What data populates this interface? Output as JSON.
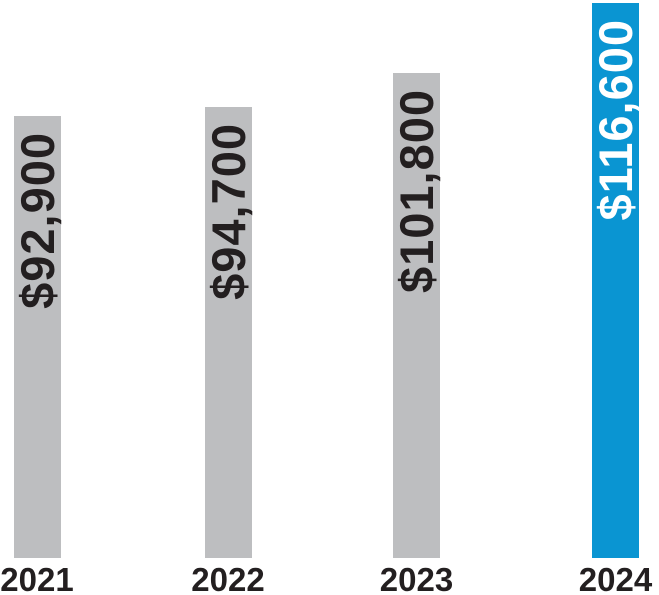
{
  "chart_data": {
    "type": "bar",
    "orientation": "vertical",
    "categories": [
      "2021",
      "2022",
      "2023",
      "2024"
    ],
    "values": [
      92900,
      94700,
      101800,
      116600
    ],
    "value_labels": [
      "$92,900",
      "$94,700",
      "$101,800",
      "$116,600"
    ],
    "highlight_index": 3,
    "value_label_position": "inside-top-rotated-90",
    "grid": false,
    "legend": "none",
    "ylim": [
      0,
      116600
    ],
    "colors": {
      "bar": "#BDBEC0",
      "bar_highlight": "#0A95D2",
      "value_label": "#231F20",
      "value_label_on_highlight": "#FFFFFF",
      "axis_label": "#231F20",
      "background": "#FFFFFF"
    }
  }
}
